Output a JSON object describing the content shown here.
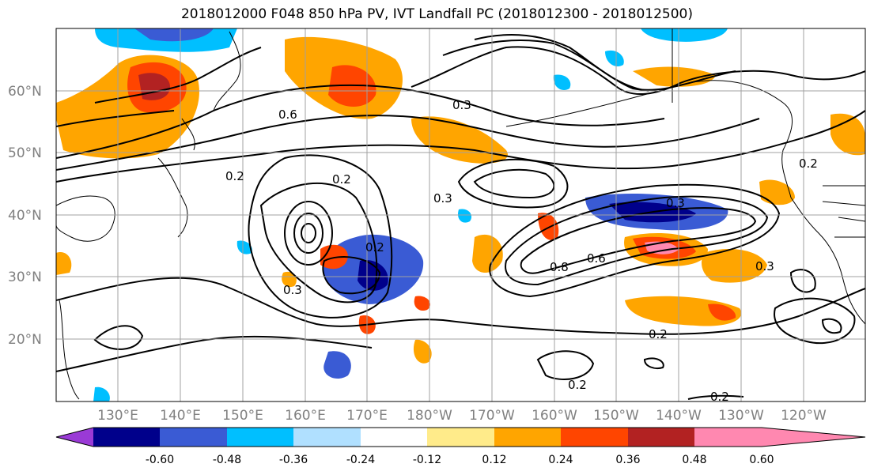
{
  "title": "2018012000 F048 850 hPa PV, IVT Landfall PC (2018012300 - 2018012500)",
  "map": {
    "lat_ticks": [
      "60°N",
      "50°N",
      "40°N",
      "30°N",
      "20°N"
    ],
    "lon_ticks": [
      "130°E",
      "140°E",
      "150°E",
      "160°E",
      "170°E",
      "180°W",
      "170°W",
      "160°W",
      "150°W",
      "140°W",
      "130°W",
      "120°W"
    ],
    "contour_labels": [
      "0.3",
      "0.2",
      "0.2",
      "0.3",
      "0.3",
      "0.2",
      "0.2",
      "0.2",
      "0.2",
      "0.6",
      "0.8",
      "0.3",
      "0.2",
      "0.6",
      "0.3"
    ]
  },
  "colorbar": {
    "tick_labels": [
      "-0.60",
      "-0.48",
      "-0.36",
      "-0.24",
      "-0.12",
      "0.12",
      "0.24",
      "0.36",
      "0.48",
      "0.60"
    ],
    "colors": [
      "#9a3ad6",
      "#00008b",
      "#3a5bd4",
      "#00bfff",
      "#b0e0ff",
      "#ffffff",
      "#ffeb8a",
      "#ffa500",
      "#ff4500",
      "#b22222",
      "#ff88b0"
    ]
  }
}
